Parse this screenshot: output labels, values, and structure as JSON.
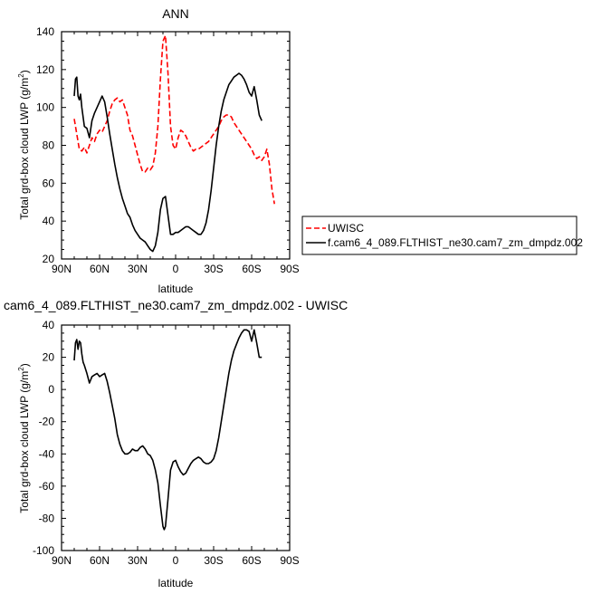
{
  "chart_data": [
    {
      "type": "line",
      "title": "ANN",
      "xlabel": "latitude",
      "ylabel": "Total grd-box cloud LWP (g/m",
      "ylabel_sup": "2",
      "ylabel_close": ")",
      "xlim": [
        90,
        -90
      ],
      "ylim": [
        20,
        140
      ],
      "xticks": [
        {
          "value": 90,
          "label": "90N"
        },
        {
          "value": 60,
          "label": "60N"
        },
        {
          "value": 30,
          "label": "30N"
        },
        {
          "value": 0,
          "label": "0"
        },
        {
          "value": -30,
          "label": "30S"
        },
        {
          "value": -60,
          "label": "60S"
        },
        {
          "value": -90,
          "label": "90S"
        }
      ],
      "yticks": [
        20,
        40,
        60,
        80,
        100,
        120,
        140
      ],
      "legend": "outside-right",
      "series": [
        {
          "name": "UWISC",
          "color": "#ff0000",
          "dash": "dashed",
          "x": [
            80,
            78,
            76,
            74,
            72,
            70,
            68,
            66,
            64,
            62,
            60,
            58,
            56,
            54,
            52,
            50,
            48,
            46,
            44,
            42,
            40,
            38,
            36,
            34,
            32,
            30,
            28,
            26,
            24,
            22,
            20,
            18,
            16,
            14,
            12,
            10,
            8,
            6,
            4,
            2,
            0,
            -2,
            -4,
            -6,
            -8,
            -10,
            -12,
            -14,
            -16,
            -18,
            -20,
            -22,
            -24,
            -26,
            -28,
            -30,
            -32,
            -34,
            -36,
            -38,
            -40,
            -42,
            -44,
            -46,
            -48,
            -50,
            -52,
            -54,
            -56,
            -58,
            -60,
            -62,
            -64,
            -66,
            -68,
            -70,
            -72,
            -74,
            -76,
            -78
          ],
          "y": [
            94,
            86,
            78,
            77,
            79,
            76,
            80,
            84,
            82,
            86,
            88,
            87,
            90,
            93,
            98,
            102,
            104,
            105,
            103,
            104,
            100,
            96,
            88,
            85,
            80,
            75,
            70,
            66,
            66,
            68,
            67,
            69,
            76,
            90,
            115,
            135,
            138,
            118,
            90,
            80,
            78,
            84,
            88,
            87,
            85,
            82,
            79,
            77,
            78,
            78,
            79,
            80,
            81,
            82,
            84,
            86,
            88,
            90,
            93,
            95,
            96,
            96,
            95,
            92,
            90,
            88,
            86,
            84,
            82,
            80,
            78,
            75,
            73,
            74,
            72,
            74,
            78,
            70,
            57,
            49
          ]
        },
        {
          "name": "f.cam6_4_089.FLTHIST_ne30.cam7_zm_dmpdz.002",
          "color": "#000000",
          "dash": "solid",
          "x": [
            80,
            79,
            78,
            77,
            76,
            75,
            74,
            73,
            72,
            70,
            68,
            66,
            64,
            62,
            60,
            58,
            56,
            54,
            52,
            50,
            48,
            46,
            44,
            42,
            40,
            38,
            36,
            34,
            32,
            30,
            28,
            26,
            24,
            22,
            20,
            18,
            16,
            14,
            12,
            10,
            8,
            6,
            4,
            2,
            0,
            -2,
            -4,
            -6,
            -8,
            -10,
            -12,
            -14,
            -16,
            -18,
            -20,
            -22,
            -24,
            -26,
            -28,
            -30,
            -32,
            -34,
            -36,
            -38,
            -40,
            -42,
            -44,
            -46,
            -48,
            -50,
            -52,
            -54,
            -56,
            -58,
            -60,
            -62,
            -64,
            -66,
            -68
          ],
          "y": [
            106,
            115,
            116,
            106,
            104,
            107,
            100,
            95,
            90,
            89,
            84,
            93,
            97,
            100,
            103,
            106,
            103,
            95,
            86,
            78,
            70,
            63,
            57,
            52,
            48,
            44,
            42,
            38,
            35,
            33,
            31,
            30,
            29,
            27,
            25,
            24,
            27,
            34,
            46,
            52,
            53,
            43,
            33,
            33,
            34,
            34,
            35,
            36,
            37,
            37,
            36,
            35,
            34,
            33,
            33,
            35,
            39,
            46,
            56,
            68,
            80,
            90,
            98,
            104,
            108,
            112,
            114,
            116,
            117,
            118,
            117,
            115,
            112,
            108,
            106,
            111,
            104,
            96,
            93
          ]
        }
      ]
    },
    {
      "type": "line",
      "title": "cam6_4_089.FLTHIST_ne30.cam7_zm_dmpdz.002 - UWISC",
      "xlabel": "latitude",
      "ylabel": "Total grd-box cloud LWP (g/m",
      "ylabel_sup": "2",
      "ylabel_close": ")",
      "xlim": [
        90,
        -90
      ],
      "ylim": [
        -100,
        40
      ],
      "xticks": [
        {
          "value": 90,
          "label": "90N"
        },
        {
          "value": 60,
          "label": "60N"
        },
        {
          "value": 30,
          "label": "30N"
        },
        {
          "value": 0,
          "label": "0"
        },
        {
          "value": -30,
          "label": "30S"
        },
        {
          "value": -60,
          "label": "60S"
        },
        {
          "value": -90,
          "label": "90S"
        }
      ],
      "yticks": [
        -100,
        -80,
        -60,
        -40,
        -20,
        0,
        20,
        40
      ],
      "series": [
        {
          "color": "#000000",
          "dash": "solid",
          "x": [
            80,
            79,
            78,
            77,
            76,
            75,
            74,
            73,
            72,
            70,
            68,
            66,
            64,
            62,
            60,
            58,
            56,
            54,
            52,
            50,
            48,
            46,
            44,
            42,
            40,
            38,
            36,
            34,
            32,
            30,
            28,
            26,
            24,
            22,
            20,
            18,
            16,
            14,
            12,
            10,
            9,
            8,
            6,
            4,
            2,
            0,
            -2,
            -4,
            -6,
            -8,
            -10,
            -12,
            -14,
            -16,
            -18,
            -20,
            -22,
            -24,
            -26,
            -28,
            -30,
            -32,
            -34,
            -36,
            -38,
            -40,
            -42,
            -44,
            -46,
            -48,
            -50,
            -52,
            -54,
            -56,
            -58,
            -60,
            -62,
            -64,
            -66,
            -68
          ],
          "y": [
            18,
            29,
            31,
            25,
            30,
            29,
            22,
            17,
            15,
            10,
            4,
            8,
            9,
            10,
            8,
            9,
            10,
            5,
            -2,
            -10,
            -18,
            -28,
            -34,
            -38,
            -40,
            -40,
            -39,
            -37,
            -38,
            -38,
            -36,
            -35,
            -37,
            -40,
            -41,
            -44,
            -50,
            -58,
            -72,
            -85,
            -87,
            -85,
            -68,
            -50,
            -45,
            -44,
            -48,
            -51,
            -53,
            -52,
            -49,
            -46,
            -44,
            -43,
            -42,
            -43,
            -45,
            -46,
            -46,
            -45,
            -43,
            -38,
            -30,
            -20,
            -10,
            0,
            10,
            18,
            24,
            28,
            32,
            35,
            37,
            37,
            36,
            30,
            37,
            29,
            20,
            20
          ]
        }
      ]
    }
  ]
}
